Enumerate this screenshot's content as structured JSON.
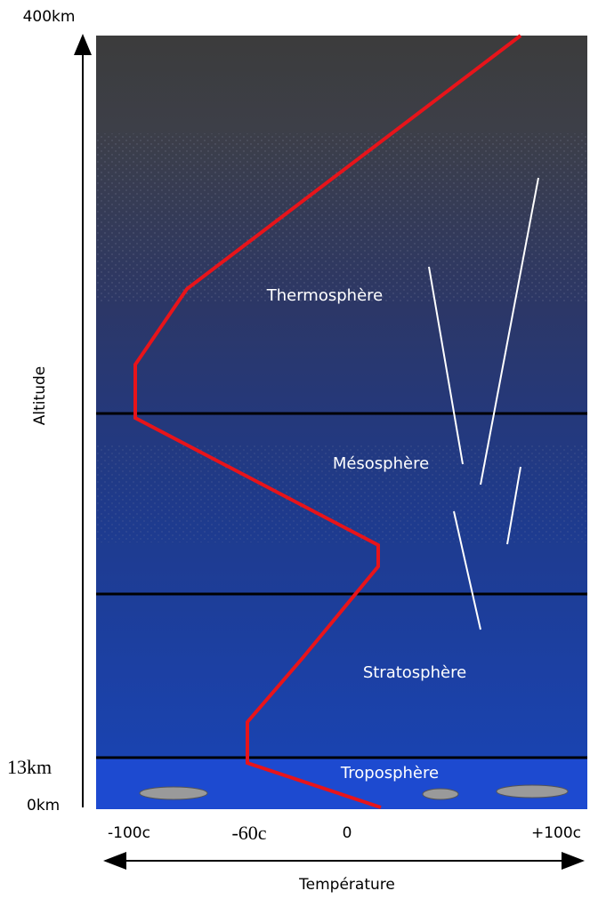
{
  "axes": {
    "top_altitude": "400km",
    "altitude_label": "Altitude",
    "mid_altitude": "13km",
    "bottom_altitude": "0km",
    "temperature_ticks": [
      "-100c",
      "-60c",
      "0",
      "+100c"
    ],
    "temperature_label": "Température"
  },
  "layers": [
    "Thermosphère",
    "Mésosphère",
    "Stratosphère",
    "Troposphère"
  ]
}
